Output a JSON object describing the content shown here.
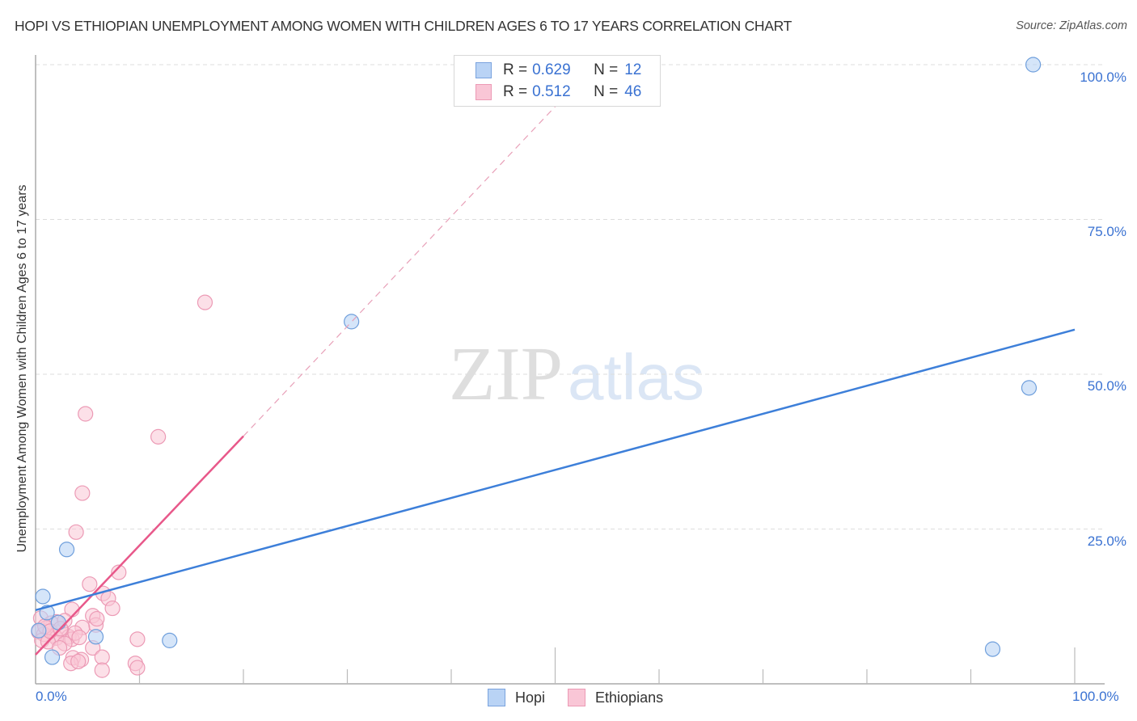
{
  "header": {
    "title": "HOPI VS ETHIOPIAN UNEMPLOYMENT AMONG WOMEN WITH CHILDREN AGES 6 TO 17 YEARS CORRELATION CHART",
    "source": "Source: ZipAtlas.com"
  },
  "watermark": {
    "zip": "ZIP",
    "atlas": "atlas"
  },
  "legend": {
    "rows": [
      {
        "r_label": "R =",
        "r_value": "0.629",
        "n_label": "N =",
        "n_value": "12",
        "color_fill": "#b9d3f5",
        "color_border": "#7aa3de"
      },
      {
        "r_label": "R =",
        "r_value": "0.512",
        "n_label": "N =",
        "n_value": "46",
        "color_fill": "#f9c6d6",
        "color_border": "#ec9ab5"
      }
    ]
  },
  "bottom_legend": {
    "items": [
      {
        "label": "Hopi",
        "color_fill": "#b9d3f5",
        "color_border": "#7aa3de"
      },
      {
        "label": "Ethiopians",
        "color_fill": "#f9c6d6",
        "color_border": "#ec9ab5"
      }
    ]
  },
  "axes": {
    "ylabel": "Unemployment Among Women with Children Ages 6 to 17 years",
    "y_ticks": [
      "100.0%",
      "75.0%",
      "50.0%",
      "25.0%"
    ],
    "x_ticks": {
      "left": "0.0%",
      "right": "100.0%"
    }
  },
  "colors": {
    "hopi": "#3d7fd9",
    "ethiopians": "#e8588a",
    "tick_text": "#3a72d2",
    "grid": "#dddddd"
  },
  "chart_data": {
    "type": "scatter",
    "title": "HOPI VS ETHIOPIAN UNEMPLOYMENT AMONG WOMEN WITH CHILDREN AGES 6 TO 17 YEARS CORRELATION CHART",
    "xlabel": "",
    "ylabel": "Unemployment Among Women with Children Ages 6 to 17 years",
    "xlim": [
      0,
      100
    ],
    "ylim": [
      0,
      100
    ],
    "x_tick_labels": [
      "0.0%",
      "100.0%"
    ],
    "y_tick_labels": [
      "25.0%",
      "50.0%",
      "75.0%",
      "100.0%"
    ],
    "grid": {
      "horizontal_dashed": true,
      "vertical": false
    },
    "legend_position": "top-center",
    "series": [
      {
        "name": "Hopi",
        "R": 0.629,
        "N": 12,
        "color": "#3d7fd9",
        "points": [
          [
            96.0,
            100.0
          ],
          [
            30.4,
            58.5
          ],
          [
            95.6,
            47.8
          ],
          [
            3.0,
            21.7
          ],
          [
            0.7,
            14.1
          ],
          [
            1.1,
            11.5
          ],
          [
            2.2,
            9.9
          ],
          [
            5.8,
            7.6
          ],
          [
            12.9,
            7.0
          ],
          [
            1.6,
            4.3
          ],
          [
            92.1,
            5.6
          ],
          [
            0.3,
            8.6
          ]
        ],
        "trendline": {
          "x": [
            0,
            100
          ],
          "y": [
            11.9,
            57.2
          ],
          "style": "solid"
        }
      },
      {
        "name": "Ethiopians",
        "R": 0.512,
        "N": 46,
        "color": "#e8588a",
        "points": [
          [
            16.3,
            61.6
          ],
          [
            4.8,
            43.6
          ],
          [
            11.8,
            39.9
          ],
          [
            4.5,
            30.8
          ],
          [
            3.9,
            24.5
          ],
          [
            5.2,
            16.1
          ],
          [
            8.0,
            18.0
          ],
          [
            6.5,
            14.6
          ],
          [
            7.0,
            13.8
          ],
          [
            3.5,
            12.0
          ],
          [
            7.4,
            12.2
          ],
          [
            5.5,
            11.0
          ],
          [
            2.0,
            10.0
          ],
          [
            0.5,
            10.6
          ],
          [
            1.5,
            9.8
          ],
          [
            5.8,
            9.5
          ],
          [
            1.0,
            9.0
          ],
          [
            2.5,
            8.6
          ],
          [
            0.3,
            8.4
          ],
          [
            4.5,
            9.1
          ],
          [
            0.8,
            8.0
          ],
          [
            1.8,
            7.8
          ],
          [
            3.2,
            7.6
          ],
          [
            2.0,
            7.4
          ],
          [
            3.5,
            7.2
          ],
          [
            0.6,
            7.0
          ],
          [
            1.2,
            6.8
          ],
          [
            2.8,
            6.5
          ],
          [
            3.8,
            8.2
          ],
          [
            5.9,
            10.5
          ],
          [
            9.8,
            7.2
          ],
          [
            2.3,
            5.8
          ],
          [
            5.5,
            5.8
          ],
          [
            3.6,
            4.2
          ],
          [
            4.4,
            3.9
          ],
          [
            6.4,
            4.3
          ],
          [
            3.4,
            3.3
          ],
          [
            4.1,
            3.6
          ],
          [
            6.4,
            2.2
          ],
          [
            9.6,
            3.3
          ],
          [
            9.8,
            2.6
          ],
          [
            0.9,
            9.3
          ],
          [
            2.8,
            10.2
          ],
          [
            1.4,
            8.5
          ],
          [
            4.2,
            7.5
          ],
          [
            2.4,
            8.9
          ]
        ],
        "trendline": {
          "x": [
            0,
            20
          ],
          "y": [
            4.7,
            40.0
          ],
          "style": "solid",
          "extension": {
            "x": [
              20,
              51
            ],
            "y": [
              40.0,
              95.0
            ],
            "style": "dashed"
          }
        }
      }
    ]
  }
}
